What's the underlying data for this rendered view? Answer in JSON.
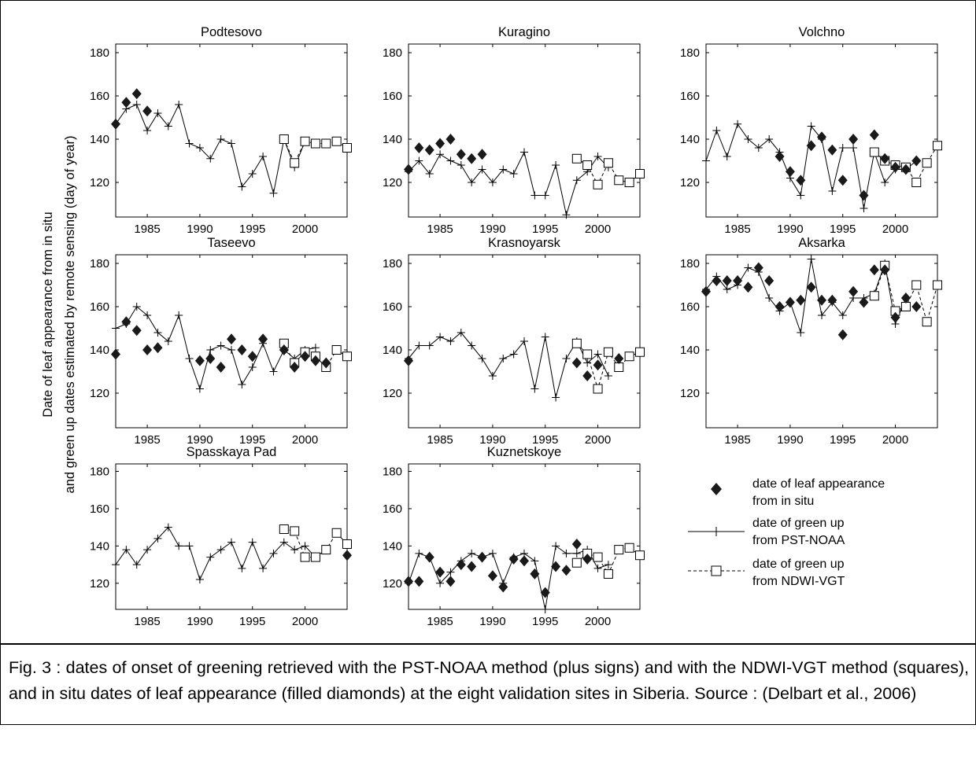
{
  "figure": {
    "ylabel_line1": "Date of leaf appearance from in situ",
    "ylabel_line2": "and green up dates estimated by remote sensing (day of year)"
  },
  "legend": {
    "insitu_line1": "date of leaf appearance",
    "insitu_line2": "from in situ",
    "pst_line1": "date of green up",
    "pst_line2": "from PST-NOAA",
    "ndwi_line1": "date of green up",
    "ndwi_line2": "from NDWI-VGT"
  },
  "caption": "Fig. 3 : dates of onset of greening retrieved with the PST-NOAA method (plus signs) and with the NDWI-VGT method (squares), and in situ dates of leaf appearance (filled diamonds) at the eight validation sites in Siberia. Source : (Delbart et al., 2006)",
  "chart_data": [
    {
      "type": "line",
      "title": "Podtesovo",
      "xlim": [
        1982,
        2004
      ],
      "ylim": [
        104,
        184
      ],
      "xticks": [
        1985,
        1990,
        1995,
        2000
      ],
      "yticks": [
        120,
        140,
        160,
        180
      ],
      "series": [
        {
          "name": "date of green up from PST-NOAA",
          "x": [
            1982,
            1983,
            1984,
            1985,
            1986,
            1987,
            1988,
            1989,
            1990,
            1991,
            1992,
            1993,
            1994,
            1995,
            1996,
            1997,
            1998,
            1999,
            2000
          ],
          "y": [
            147,
            154,
            156,
            144,
            152,
            146,
            156,
            138,
            136,
            131,
            140,
            138,
            118,
            124,
            132,
            115,
            140,
            127,
            139
          ]
        },
        {
          "name": "date of green up from NDWI-VGT",
          "x": [
            1998,
            1999,
            2000,
            2001,
            2002,
            2003,
            2004
          ],
          "y": [
            140,
            129,
            139,
            138,
            138,
            139,
            136
          ]
        },
        {
          "name": "date of leaf appearance from in situ",
          "x": [
            1982,
            1983,
            1984,
            1985
          ],
          "y": [
            147,
            157,
            161,
            153
          ]
        }
      ]
    },
    {
      "type": "line",
      "title": "Kuragino",
      "xlim": [
        1982,
        2004
      ],
      "ylim": [
        104,
        184
      ],
      "xticks": [
        1985,
        1990,
        1995,
        2000
      ],
      "yticks": [
        120,
        140,
        160,
        180
      ],
      "series": [
        {
          "name": "date of green up from PST-NOAA",
          "x": [
            1982,
            1983,
            1984,
            1985,
            1986,
            1987,
            1988,
            1989,
            1990,
            1991,
            1992,
            1993,
            1994,
            1995,
            1996,
            1997,
            1998,
            1999,
            2000,
            2001
          ],
          "y": [
            125,
            130,
            124,
            133,
            130,
            128,
            120,
            126,
            120,
            126,
            124,
            134,
            114,
            114,
            128,
            105,
            121,
            125,
            132,
            127
          ]
        },
        {
          "name": "date of green up from NDWI-VGT",
          "x": [
            1998,
            1999,
            2000,
            2001,
            2002,
            2003,
            2004
          ],
          "y": [
            131,
            128,
            119,
            129,
            121,
            120,
            124
          ]
        },
        {
          "name": "date of leaf appearance from in situ",
          "x": [
            1982,
            1983,
            1984,
            1985,
            1986,
            1987,
            1988,
            1989
          ],
          "y": [
            126,
            136,
            135,
            138,
            140,
            133,
            131,
            133
          ]
        }
      ]
    },
    {
      "type": "line",
      "title": "Volchno",
      "xlim": [
        1982,
        2004
      ],
      "ylim": [
        104,
        184
      ],
      "xticks": [
        1985,
        1990,
        1995,
        2000
      ],
      "yticks": [
        120,
        140,
        160,
        180
      ],
      "series": [
        {
          "name": "date of green up from PST-NOAA",
          "x": [
            1982,
            1983,
            1984,
            1985,
            1986,
            1987,
            1988,
            1989,
            1990,
            1991,
            1992,
            1993,
            1994,
            1995,
            1996,
            1997,
            1998,
            1999,
            2000,
            2001,
            2002
          ],
          "y": [
            130,
            144,
            132,
            147,
            140,
            136,
            140,
            134,
            122,
            114,
            146,
            140,
            116,
            136,
            136,
            108,
            134,
            120,
            126,
            126,
            130
          ]
        },
        {
          "name": "date of green up from NDWI-VGT",
          "x": [
            1998,
            1999,
            2000,
            2001,
            2002,
            2003,
            2004
          ],
          "y": [
            134,
            130,
            128,
            127,
            120,
            129,
            137
          ]
        },
        {
          "name": "date of leaf appearance from in situ",
          "x": [
            1989,
            1990,
            1991,
            1992,
            1993,
            1994,
            1995,
            1996,
            1997,
            1998,
            1999,
            2000,
            2001,
            2002
          ],
          "y": [
            132,
            125,
            121,
            137,
            141,
            135,
            121,
            140,
            114,
            142,
            131,
            127,
            126,
            130
          ]
        }
      ]
    },
    {
      "type": "line",
      "title": "Taseevo",
      "xlim": [
        1982,
        2004
      ],
      "ylim": [
        104,
        184
      ],
      "xticks": [
        1985,
        1990,
        1995,
        2000
      ],
      "yticks": [
        120,
        140,
        160,
        180
      ],
      "series": [
        {
          "name": "date of green up from PST-NOAA",
          "x": [
            1982,
            1983,
            1984,
            1985,
            1986,
            1987,
            1988,
            1989,
            1990,
            1991,
            1992,
            1993,
            1994,
            1995,
            1996,
            1997,
            1998,
            1999,
            2000,
            2001
          ],
          "y": [
            150,
            152,
            160,
            156,
            148,
            144,
            156,
            136,
            122,
            140,
            142,
            140,
            124,
            132,
            143,
            130,
            140,
            136,
            140,
            141
          ]
        },
        {
          "name": "date of green up from NDWI-VGT",
          "x": [
            1998,
            1999,
            2000,
            2001,
            2002,
            2003,
            2004
          ],
          "y": [
            143,
            134,
            139,
            137,
            132,
            140,
            137
          ]
        },
        {
          "name": "date of leaf appearance from in situ",
          "x": [
            1982,
            1983,
            1984,
            1985,
            1986,
            1990,
            1991,
            1992,
            1993,
            1994,
            1995,
            1996,
            1998,
            1999,
            2000,
            2001,
            2002
          ],
          "y": [
            138,
            153,
            149,
            140,
            141,
            135,
            136,
            132,
            145,
            140,
            137,
            145,
            140,
            132,
            137,
            135,
            134
          ]
        }
      ]
    },
    {
      "type": "line",
      "title": "Krasnoyarsk",
      "xlim": [
        1982,
        2004
      ],
      "ylim": [
        104,
        184
      ],
      "xticks": [
        1985,
        1990,
        1995,
        2000
      ],
      "yticks": [
        120,
        140,
        160,
        180
      ],
      "series": [
        {
          "name": "date of green up from PST-NOAA",
          "x": [
            1982,
            1983,
            1984,
            1985,
            1986,
            1987,
            1988,
            1989,
            1990,
            1991,
            1992,
            1993,
            1994,
            1995,
            1996,
            1997,
            1998,
            1999,
            2000,
            2001
          ],
          "y": [
            136,
            142,
            142,
            146,
            144,
            148,
            142,
            136,
            128,
            136,
            138,
            144,
            122,
            146,
            118,
            136,
            144,
            134,
            138,
            128
          ]
        },
        {
          "name": "date of green up from NDWI-VGT",
          "x": [
            1998,
            1999,
            2000,
            2001,
            2002,
            2003,
            2004
          ],
          "y": [
            143,
            138,
            122,
            139,
            132,
            137,
            139
          ]
        },
        {
          "name": "date of leaf appearance from in situ",
          "x": [
            1982,
            1998,
            1999,
            2000,
            2002
          ],
          "y": [
            135,
            134,
            128,
            133,
            136
          ]
        }
      ]
    },
    {
      "type": "line",
      "title": "Aksarka",
      "xlim": [
        1982,
        2004
      ],
      "ylim": [
        104,
        184
      ],
      "xticks": [
        1985,
        1990,
        1995,
        2000
      ],
      "yticks": [
        120,
        140,
        160,
        180
      ],
      "series": [
        {
          "name": "date of green up from PST-NOAA",
          "x": [
            1982,
            1983,
            1984,
            1985,
            1986,
            1987,
            1988,
            1989,
            1990,
            1991,
            1992,
            1993,
            1994,
            1995,
            1996,
            1997,
            1998,
            1999,
            2000,
            2001
          ],
          "y": [
            168,
            174,
            168,
            170,
            178,
            176,
            164,
            158,
            162,
            148,
            182,
            156,
            162,
            156,
            164,
            164,
            166,
            180,
            152,
            164
          ]
        },
        {
          "name": "date of green up from NDWI-VGT",
          "x": [
            1998,
            1999,
            2000,
            2001,
            2002,
            2003,
            2004
          ],
          "y": [
            165,
            179,
            158,
            160,
            170,
            153,
            170
          ]
        },
        {
          "name": "date of leaf appearance from in situ",
          "x": [
            1982,
            1983,
            1984,
            1985,
            1986,
            1987,
            1988,
            1989,
            1990,
            1991,
            1992,
            1993,
            1994,
            1995,
            1996,
            1997,
            1998,
            1999,
            2000,
            2001,
            2002
          ],
          "y": [
            167,
            172,
            172,
            172,
            169,
            178,
            172,
            160,
            162,
            163,
            169,
            163,
            163,
            147,
            167,
            162,
            177,
            177,
            155,
            164,
            160
          ]
        }
      ]
    },
    {
      "type": "line",
      "title": "Spasskaya Pad",
      "xlim": [
        1982,
        2004
      ],
      "ylim": [
        104,
        184
      ],
      "xticks": [
        1985,
        1990,
        1995,
        2000
      ],
      "yticks": [
        120,
        140,
        160,
        180
      ],
      "series": [
        {
          "name": "date of green up from PST-NOAA",
          "x": [
            1982,
            1983,
            1984,
            1985,
            1986,
            1987,
            1988,
            1989,
            1990,
            1991,
            1992,
            1993,
            1994,
            1995,
            1996,
            1997,
            1998,
            1999,
            2000,
            2001
          ],
          "y": [
            130,
            138,
            130,
            138,
            144,
            150,
            140,
            140,
            122,
            134,
            138,
            142,
            128,
            142,
            128,
            136,
            142,
            138,
            140,
            134
          ]
        },
        {
          "name": "date of green up from NDWI-VGT",
          "x": [
            1998,
            1999,
            2000,
            2001,
            2002,
            2003,
            2004
          ],
          "y": [
            149,
            148,
            134,
            134,
            138,
            147,
            141
          ]
        },
        {
          "name": "date of leaf appearance from in situ",
          "x": [
            2004
          ],
          "y": [
            135
          ]
        }
      ]
    },
    {
      "type": "line",
      "title": "Kuznetskoye",
      "xlim": [
        1982,
        2004
      ],
      "ylim": [
        104,
        184
      ],
      "xticks": [
        1985,
        1990,
        1995,
        2000
      ],
      "yticks": [
        120,
        140,
        160,
        180
      ],
      "series": [
        {
          "name": "date of green up from PST-NOAA",
          "x": [
            1982,
            1983,
            1984,
            1985,
            1986,
            1987,
            1988,
            1989,
            1990,
            1991,
            1992,
            1993,
            1994,
            1995,
            1996,
            1997,
            1998,
            1999,
            2000,
            2001
          ],
          "y": [
            120,
            136,
            134,
            120,
            126,
            132,
            136,
            134,
            136,
            120,
            134,
            136,
            132,
            106,
            140,
            136,
            136,
            138,
            128,
            130
          ]
        },
        {
          "name": "date of green up from NDWI-VGT",
          "x": [
            1998,
            1999,
            2000,
            2001,
            2002,
            2003,
            2004
          ],
          "y": [
            131,
            136,
            134,
            125,
            138,
            139,
            135
          ]
        },
        {
          "name": "date of leaf appearance from in situ",
          "x": [
            1982,
            1983,
            1984,
            1985,
            1986,
            1987,
            1988,
            1989,
            1990,
            1991,
            1992,
            1993,
            1994,
            1995,
            1996,
            1997,
            1998,
            1999
          ],
          "y": [
            121,
            121,
            134,
            126,
            121,
            130,
            129,
            134,
            124,
            118,
            133,
            132,
            125,
            115,
            129,
            127,
            141,
            133
          ]
        }
      ]
    }
  ]
}
